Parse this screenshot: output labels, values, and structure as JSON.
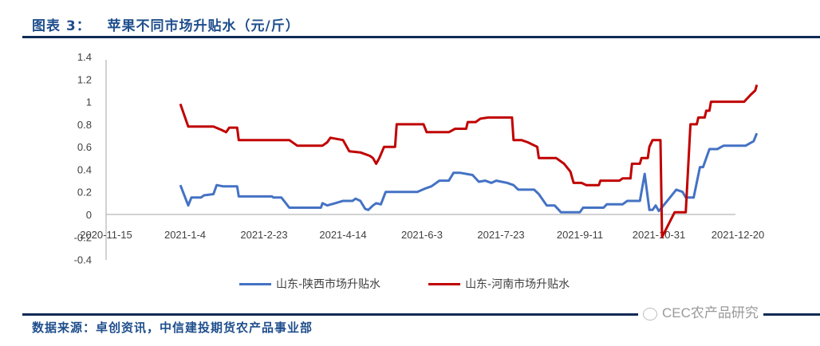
{
  "header": {
    "title": "图表 3：   苹果不同市场升贴水（元/斤）"
  },
  "footer": {
    "source": "数据来源：卓创资讯，中信建投期货农产品事业部",
    "watermark": "CEC农产品研究"
  },
  "legend": [
    {
      "label": "山东-陕西市场升贴水",
      "color": "#4472c4"
    },
    {
      "label": "山东-河南市场升贴水",
      "color": "#c00000"
    }
  ],
  "chart_data": {
    "type": "line",
    "title": "苹果不同市场升贴水（元/斤）",
    "xlabel": "",
    "ylabel": "元/斤",
    "ylim": [
      -0.4,
      1.4
    ],
    "yticks": [
      "1.4",
      "1.2",
      "1",
      "0.8",
      "0.6",
      "0.4",
      "0.2",
      "0",
      "-0.2",
      "-0.4"
    ],
    "xticks": [
      "2020-11-15",
      "2021-1-4",
      "2021-2-23",
      "2021-4-14",
      "2021-6-3",
      "2021-7-23",
      "2021-9-11",
      "2021-10-31",
      "2021-12-20"
    ],
    "grid": false,
    "legend_position": "bottom",
    "series": [
      {
        "name": "山东-陕西市场升贴水",
        "color": "#4472c4",
        "points": [
          [
            "2021-1-1",
            0.26
          ],
          [
            "2021-1-6",
            0.08
          ],
          [
            "2021-1-8",
            0.15
          ],
          [
            "2021-1-14",
            0.15
          ],
          [
            "2021-1-16",
            0.17
          ],
          [
            "2021-1-22",
            0.18
          ],
          [
            "2021-1-24",
            0.26
          ],
          [
            "2021-1-28",
            0.25
          ],
          [
            "2021-2-6",
            0.25
          ],
          [
            "2021-2-7",
            0.16
          ],
          [
            "2021-2-28",
            0.16
          ],
          [
            "2021-3-1",
            0.15
          ],
          [
            "2021-3-6",
            0.15
          ],
          [
            "2021-3-11",
            0.06
          ],
          [
            "2021-3-31",
            0.06
          ],
          [
            "2021-4-1",
            0.1
          ],
          [
            "2021-4-4",
            0.08
          ],
          [
            "2021-4-9",
            0.1
          ],
          [
            "2021-4-14",
            0.12
          ],
          [
            "2021-4-20",
            0.12
          ],
          [
            "2021-4-22",
            0.14
          ],
          [
            "2021-4-25",
            0.12
          ],
          [
            "2021-4-28",
            0.05
          ],
          [
            "2021-4-30",
            0.04
          ],
          [
            "2021-5-3",
            0.08
          ],
          [
            "2021-5-5",
            0.1
          ],
          [
            "2021-5-8",
            0.09
          ],
          [
            "2021-5-11",
            0.2
          ],
          [
            "2021-5-31",
            0.2
          ],
          [
            "2021-6-5",
            0.23
          ],
          [
            "2021-6-9",
            0.25
          ],
          [
            "2021-6-14",
            0.3
          ],
          [
            "2021-6-20",
            0.3
          ],
          [
            "2021-6-23",
            0.37
          ],
          [
            "2021-6-27",
            0.37
          ],
          [
            "2021-7-5",
            0.35
          ],
          [
            "2021-7-9",
            0.29
          ],
          [
            "2021-7-13",
            0.3
          ],
          [
            "2021-7-17",
            0.28
          ],
          [
            "2021-7-20",
            0.3
          ],
          [
            "2021-7-27",
            0.28
          ],
          [
            "2021-7-31",
            0.26
          ],
          [
            "2021-8-3",
            0.22
          ],
          [
            "2021-8-13",
            0.22
          ],
          [
            "2021-8-16",
            0.18
          ],
          [
            "2021-8-21",
            0.08
          ],
          [
            "2021-8-26",
            0.08
          ],
          [
            "2021-8-30",
            0.02
          ],
          [
            "2021-9-11",
            0.02
          ],
          [
            "2021-9-13",
            0.06
          ],
          [
            "2021-9-26",
            0.06
          ],
          [
            "2021-9-28",
            0.09
          ],
          [
            "2021-10-8",
            0.09
          ],
          [
            "2021-10-11",
            0.12
          ],
          [
            "2021-10-19",
            0.12
          ],
          [
            "2021-10-22",
            0.36
          ],
          [
            "2021-10-25",
            0.04
          ],
          [
            "2021-10-27",
            0.04
          ],
          [
            "2021-10-29",
            0.08
          ],
          [
            "2021-10-31",
            0.03
          ],
          [
            "2021-11-7",
            0.15
          ],
          [
            "2021-11-11",
            0.22
          ],
          [
            "2021-11-15",
            0.2
          ],
          [
            "2021-11-17",
            0.15
          ],
          [
            "2021-11-22",
            0.15
          ],
          [
            "2021-11-26",
            0.42
          ],
          [
            "2021-11-28",
            0.42
          ],
          [
            "2021-12-2",
            0.58
          ],
          [
            "2021-12-7",
            0.58
          ],
          [
            "2021-12-11",
            0.61
          ],
          [
            "2021-12-25",
            0.61
          ],
          [
            "2021-12-30",
            0.65
          ],
          [
            "2022-1-1",
            0.72
          ]
        ]
      },
      {
        "name": "山东-河南市场升贴水",
        "color": "#c00000",
        "points": [
          [
            "2021-1-1",
            0.98
          ],
          [
            "2021-1-6",
            0.78
          ],
          [
            "2021-1-22",
            0.78
          ],
          [
            "2021-1-27",
            0.75
          ],
          [
            "2021-1-30",
            0.73
          ],
          [
            "2021-2-1",
            0.77
          ],
          [
            "2021-2-6",
            0.77
          ],
          [
            "2021-2-7",
            0.66
          ],
          [
            "2021-3-11",
            0.66
          ],
          [
            "2021-3-16",
            0.61
          ],
          [
            "2021-4-1",
            0.61
          ],
          [
            "2021-4-4",
            0.64
          ],
          [
            "2021-4-6",
            0.68
          ],
          [
            "2021-4-14",
            0.66
          ],
          [
            "2021-4-18",
            0.56
          ],
          [
            "2021-4-25",
            0.55
          ],
          [
            "2021-5-1",
            0.52
          ],
          [
            "2021-5-3",
            0.5
          ],
          [
            "2021-5-5",
            0.45
          ],
          [
            "2021-5-7",
            0.5
          ],
          [
            "2021-5-10",
            0.6
          ],
          [
            "2021-5-17",
            0.6
          ],
          [
            "2021-5-18",
            0.8
          ],
          [
            "2021-6-4",
            0.8
          ],
          [
            "2021-6-6",
            0.73
          ],
          [
            "2021-6-20",
            0.73
          ],
          [
            "2021-6-24",
            0.76
          ],
          [
            "2021-7-1",
            0.76
          ],
          [
            "2021-7-2",
            0.82
          ],
          [
            "2021-7-7",
            0.82
          ],
          [
            "2021-7-10",
            0.85
          ],
          [
            "2021-7-15",
            0.86
          ],
          [
            "2021-7-30",
            0.86
          ],
          [
            "2021-7-31",
            0.66
          ],
          [
            "2021-8-5",
            0.66
          ],
          [
            "2021-8-9",
            0.64
          ],
          [
            "2021-8-15",
            0.6
          ],
          [
            "2021-8-16",
            0.5
          ],
          [
            "2021-8-27",
            0.5
          ],
          [
            "2021-9-1",
            0.45
          ],
          [
            "2021-9-5",
            0.38
          ],
          [
            "2021-9-7",
            0.28
          ],
          [
            "2021-9-12",
            0.28
          ],
          [
            "2021-9-15",
            0.26
          ],
          [
            "2021-9-23",
            0.26
          ],
          [
            "2021-9-24",
            0.3
          ],
          [
            "2021-10-6",
            0.3
          ],
          [
            "2021-10-8",
            0.32
          ],
          [
            "2021-10-13",
            0.32
          ],
          [
            "2021-10-14",
            0.45
          ],
          [
            "2021-10-19",
            0.45
          ],
          [
            "2021-10-20",
            0.5
          ],
          [
            "2021-10-24",
            0.5
          ],
          [
            "2021-10-25",
            0.6
          ],
          [
            "2021-10-27",
            0.66
          ],
          [
            "2021-11-1",
            0.66
          ],
          [
            "2021-11-2",
            -0.2
          ],
          [
            "2021-11-10",
            0.02
          ],
          [
            "2021-11-17",
            0.02
          ],
          [
            "2021-11-20",
            0.8
          ],
          [
            "2021-11-24",
            0.8
          ],
          [
            "2021-11-25",
            0.86
          ],
          [
            "2021-11-29",
            0.86
          ],
          [
            "2021-11-30",
            0.92
          ],
          [
            "2021-12-2",
            0.92
          ],
          [
            "2021-12-3",
            1.0
          ],
          [
            "2021-12-24",
            1.0
          ],
          [
            "2021-12-28",
            1.06
          ],
          [
            "2021-12-31",
            1.1
          ],
          [
            "2022-1-1",
            1.15
          ]
        ]
      }
    ]
  }
}
